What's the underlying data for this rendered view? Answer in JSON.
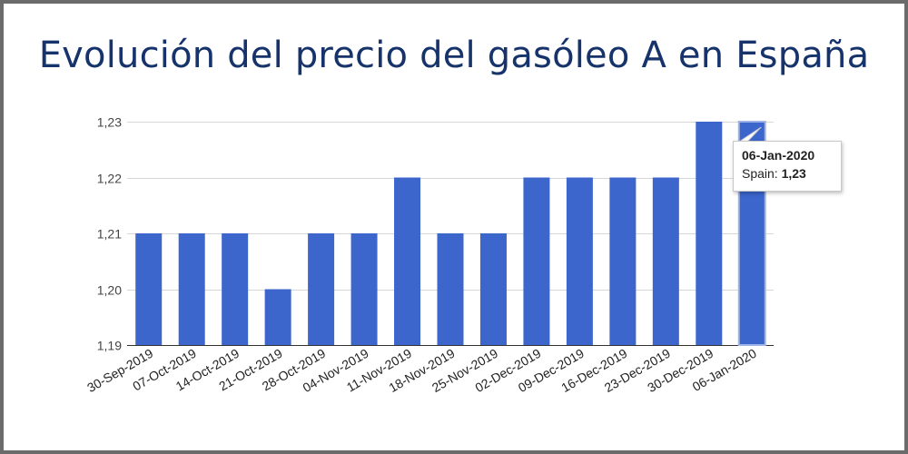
{
  "chart_data": {
    "type": "bar",
    "title": "Evolución del precio del gasóleo A en España",
    "xlabel": "",
    "ylabel": "",
    "categories": [
      "30-Sep-2019",
      "07-Oct-2019",
      "14-Oct-2019",
      "21-Oct-2019",
      "28-Oct-2019",
      "04-Nov-2019",
      "11-Nov-2019",
      "18-Nov-2019",
      "25-Nov-2019",
      "02-Dec-2019",
      "09-Dec-2019",
      "16-Dec-2019",
      "23-Dec-2019",
      "30-Dec-2019",
      "06-Jan-2020"
    ],
    "series": [
      {
        "name": "Spain",
        "values": [
          1.21,
          1.21,
          1.21,
          1.2,
          1.21,
          1.21,
          1.22,
          1.21,
          1.21,
          1.22,
          1.22,
          1.22,
          1.22,
          1.23,
          1.23
        ]
      }
    ],
    "ylim": [
      1.19,
      1.23
    ],
    "yticks": [
      "1,19",
      "1,20",
      "1,21",
      "1,22",
      "1,23"
    ],
    "grid": true,
    "legend": "none",
    "bar_color": "#3c66cc",
    "highlighted_index": 14
  },
  "tooltip": {
    "date": "06-Jan-2020",
    "series_label": "Spain:",
    "value": "1,23"
  },
  "colors": {
    "title": "#17336b",
    "bar": "#3c66cc",
    "frame": "#6b6b6b"
  }
}
